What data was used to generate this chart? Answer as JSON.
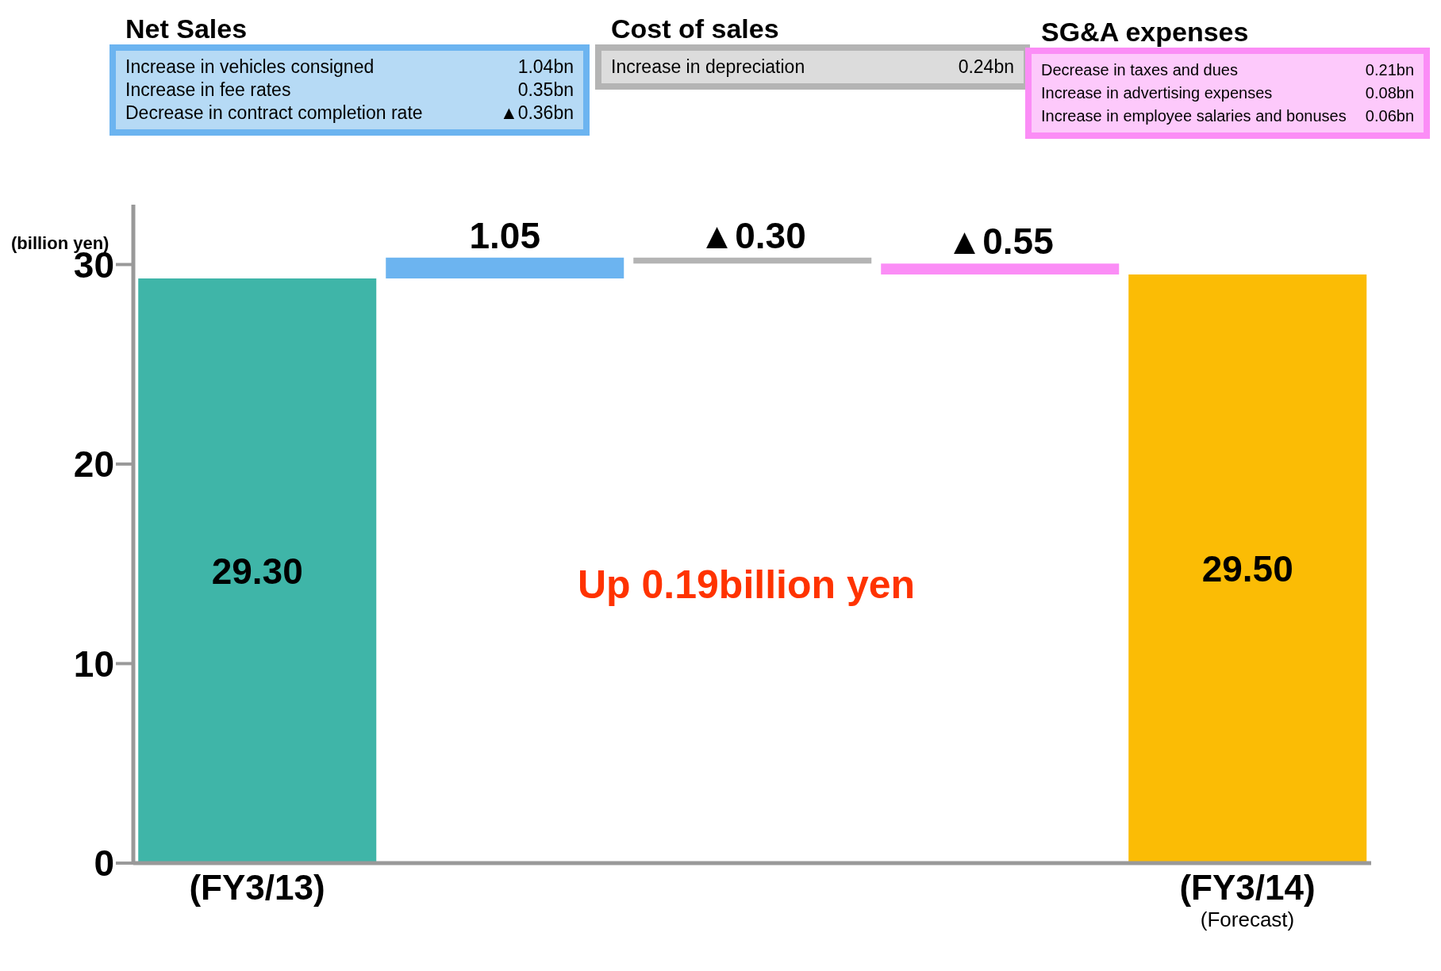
{
  "chart_data": {
    "type": "bar",
    "categories": [
      "(FY3/13)",
      null,
      null,
      null,
      "(FY3/14)"
    ],
    "values": [
      29.3,
      1.05,
      -0.3,
      -0.55,
      29.5
    ],
    "base": [
      0,
      29.3,
      30.35,
      30.05,
      0
    ],
    "colors": [
      "#3fb5a8",
      "#6cb4f0",
      "#b4b4b4",
      "#fb8df6",
      "#fbbc05"
    ],
    "value_labels": [
      "29.30",
      "1.05",
      "▲0.30",
      "▲0.55",
      "29.50"
    ],
    "ylabel": "(billion yen)",
    "ylim": [
      0,
      33
    ],
    "yticks": [
      0,
      10,
      20,
      30
    ],
    "annotations": [
      "Net Sales",
      "Increase in vehicles consigned",
      "1.04bn",
      "Increase in fee rates",
      "0.35bn",
      "Decrease in contract completion rate",
      "▲0.36bn",
      "Cost of sales",
      "Increase in depreciation",
      "0.24bn",
      "SG&A expenses",
      "Decrease in taxes and dues",
      "0.21bn",
      "Increase in advertising expenses",
      "0.08bn",
      "Increase in employee salaries and bonuses",
      "0.06bn",
      "Up 0.19billion yen",
      "(Forecast)"
    ]
  }
}
